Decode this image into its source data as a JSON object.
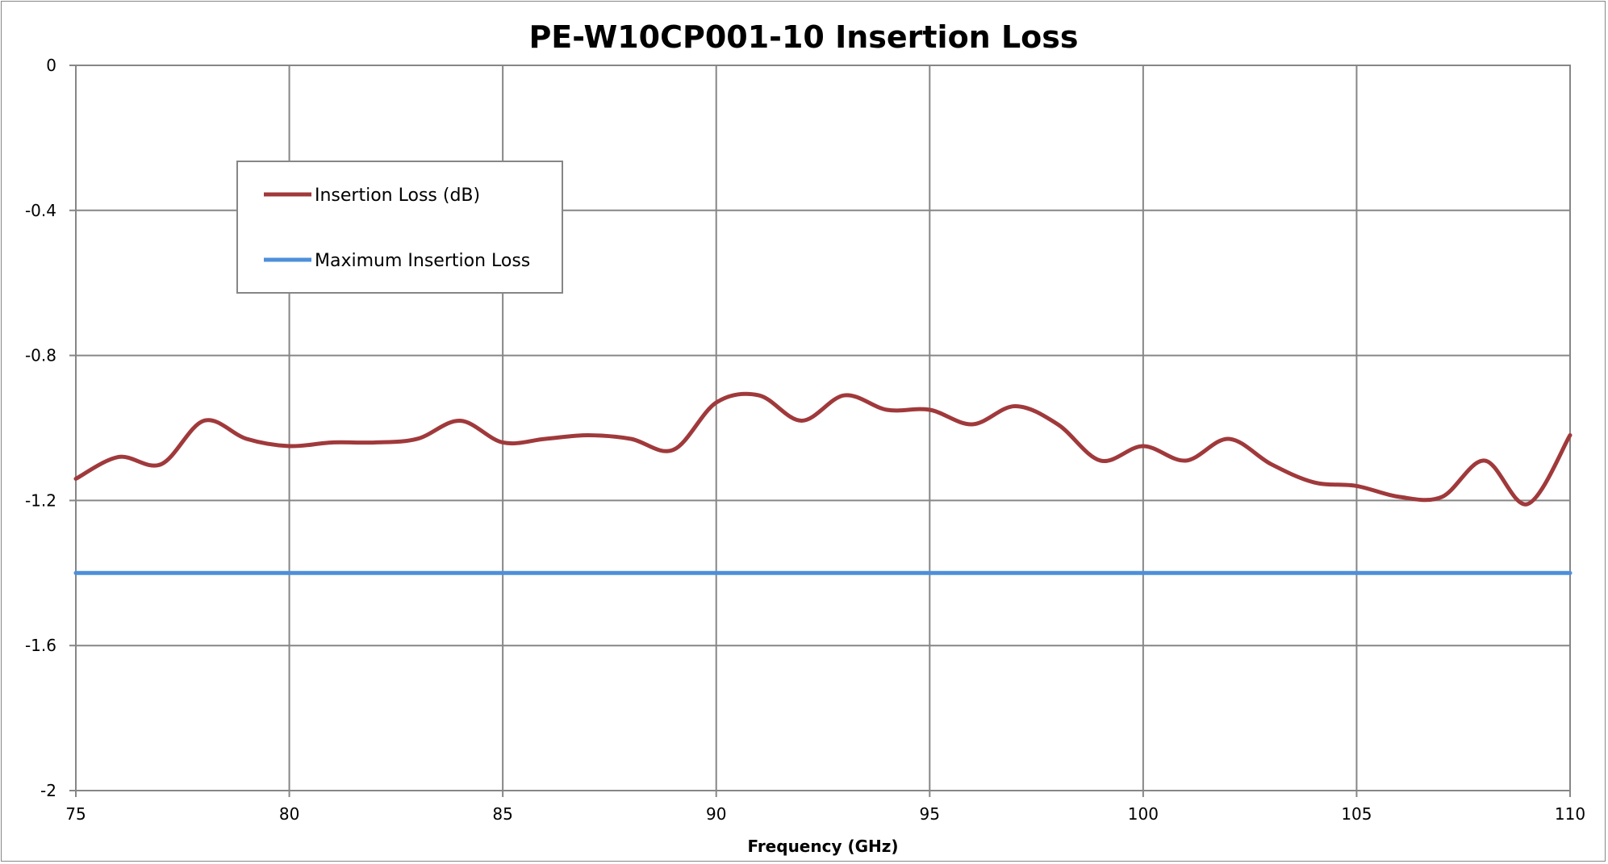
{
  "chart_data": {
    "type": "line",
    "title": "PE-W10CP001-10 Insertion Loss",
    "xlabel": "Frequency (GHz)",
    "ylabel": "",
    "xlim": [
      75,
      110
    ],
    "ylim": [
      -2,
      0
    ],
    "xticks": [
      75,
      80,
      85,
      90,
      95,
      100,
      105,
      110
    ],
    "yticks": [
      0,
      -0.4,
      -0.8,
      -1.2,
      -1.6,
      -2
    ],
    "ytick_labels": [
      "0",
      "-0.4",
      "-0.8",
      "-1.2",
      "-1.6",
      "-2"
    ],
    "grid": true,
    "legend_position": "upper-left",
    "series": [
      {
        "name": "Insertion Loss (dB)",
        "color": "#a0393b",
        "x": [
          75,
          76,
          77,
          78,
          79,
          80,
          81,
          82,
          83,
          84,
          85,
          86,
          87,
          88,
          89,
          90,
          91,
          92,
          93,
          94,
          95,
          96,
          97,
          98,
          99,
          100,
          101,
          102,
          103,
          104,
          105,
          106,
          107,
          108,
          109,
          110
        ],
        "y": [
          -1.14,
          -1.08,
          -1.1,
          -0.98,
          -1.03,
          -1.05,
          -1.04,
          -1.04,
          -1.03,
          -0.98,
          -1.04,
          -1.03,
          -1.02,
          -1.03,
          -1.06,
          -0.93,
          -0.91,
          -0.98,
          -0.91,
          -0.95,
          -0.95,
          -0.99,
          -0.94,
          -0.99,
          -1.09,
          -1.05,
          -1.09,
          -1.03,
          -1.1,
          -1.15,
          -1.16,
          -1.19,
          -1.19,
          -1.09,
          -1.21,
          -1.02
        ]
      },
      {
        "name": "Maximum Insertion Loss",
        "color": "#4e8fd9",
        "x": [
          75,
          110
        ],
        "y": [
          -1.4,
          -1.4
        ]
      }
    ]
  }
}
